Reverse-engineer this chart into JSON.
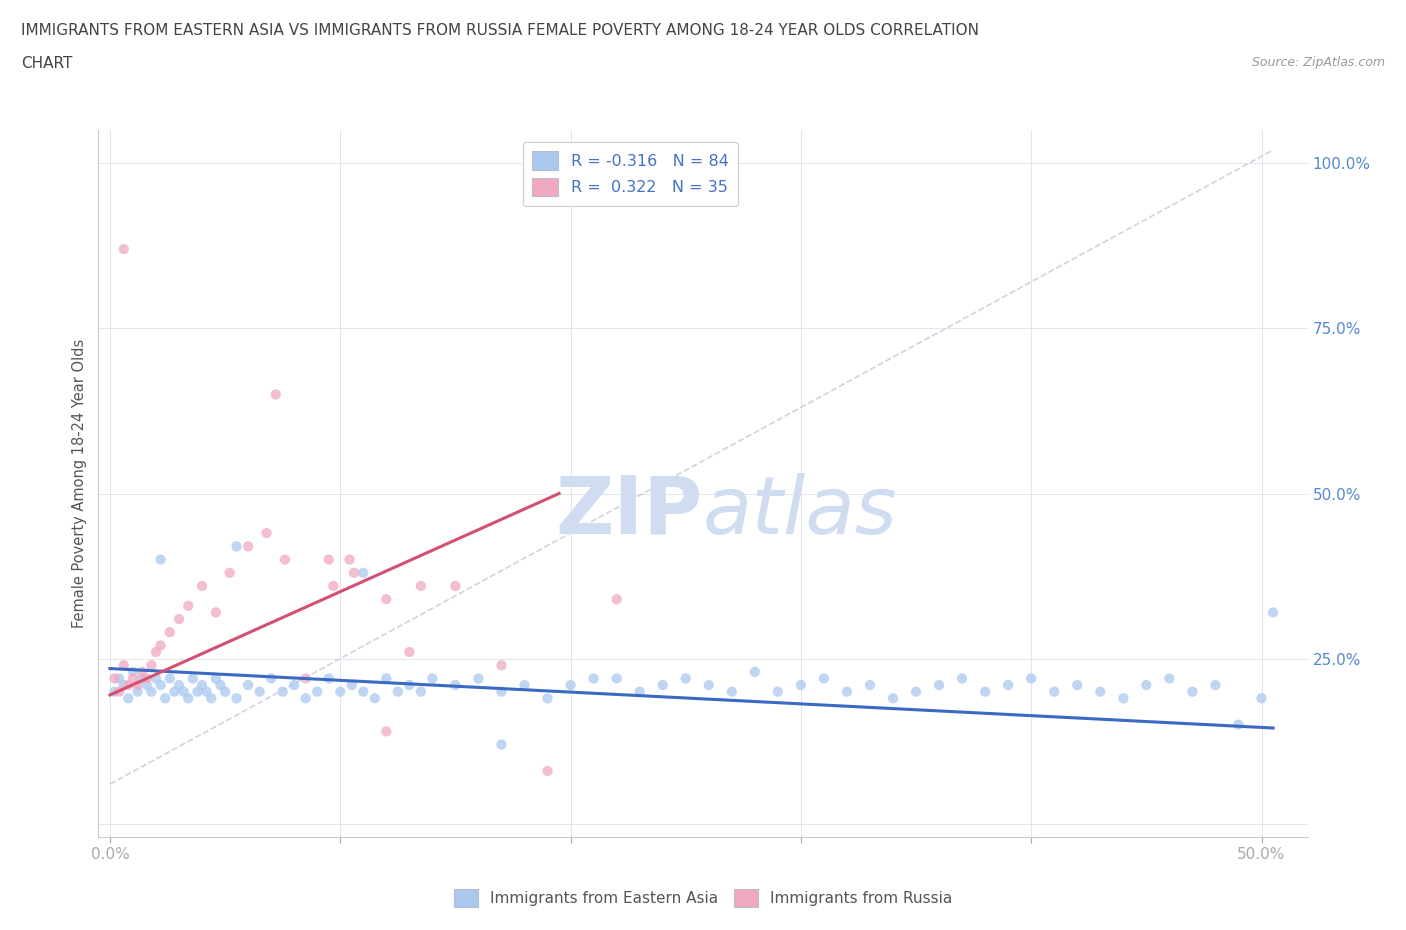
{
  "title_line1": "IMMIGRANTS FROM EASTERN ASIA VS IMMIGRANTS FROM RUSSIA FEMALE POVERTY AMONG 18-24 YEAR OLDS CORRELATION",
  "title_line2": "CHART",
  "source_text": "Source: ZipAtlas.com",
  "ylabel": "Female Poverty Among 18-24 Year Olds",
  "xlim": [
    -0.005,
    0.52
  ],
  "ylim": [
    -0.02,
    1.05
  ],
  "xticks": [
    0.0,
    0.1,
    0.2,
    0.3,
    0.4,
    0.5
  ],
  "xticklabels": [
    "0.0%",
    "",
    "",
    "",
    "",
    "50.0%"
  ],
  "yticks": [
    0.0,
    0.25,
    0.5,
    0.75,
    1.0
  ],
  "yticklabels": [
    "",
    "25.0%",
    "50.0%",
    "75.0%",
    "100.0%"
  ],
  "legend_r1": "R = -0.316   N = 84",
  "legend_r2": "R =  0.322   N = 35",
  "blue_color": "#A8C8F0",
  "pink_color": "#F0A8C0",
  "blue_line_color": "#3B6AC4",
  "pink_line_color": "#D45070",
  "trendline_dash_color": "#C8C8D8",
  "watermark_color": "#D0DCF0",
  "blue_scatter_x": [
    0.002,
    0.004,
    0.006,
    0.008,
    0.01,
    0.012,
    0.014,
    0.016,
    0.018,
    0.02,
    0.022,
    0.024,
    0.026,
    0.028,
    0.03,
    0.032,
    0.034,
    0.036,
    0.038,
    0.04,
    0.042,
    0.044,
    0.046,
    0.048,
    0.05,
    0.055,
    0.06,
    0.065,
    0.07,
    0.075,
    0.08,
    0.085,
    0.09,
    0.095,
    0.1,
    0.105,
    0.11,
    0.115,
    0.12,
    0.125,
    0.13,
    0.135,
    0.14,
    0.15,
    0.16,
    0.17,
    0.18,
    0.19,
    0.2,
    0.21,
    0.22,
    0.23,
    0.24,
    0.25,
    0.26,
    0.27,
    0.28,
    0.29,
    0.3,
    0.31,
    0.32,
    0.33,
    0.34,
    0.35,
    0.36,
    0.37,
    0.38,
    0.39,
    0.4,
    0.41,
    0.42,
    0.43,
    0.44,
    0.45,
    0.46,
    0.47,
    0.48,
    0.49,
    0.5,
    0.505,
    0.022,
    0.055,
    0.11,
    0.17
  ],
  "blue_scatter_y": [
    0.2,
    0.22,
    0.21,
    0.19,
    0.23,
    0.2,
    0.22,
    0.21,
    0.2,
    0.22,
    0.21,
    0.19,
    0.22,
    0.2,
    0.21,
    0.2,
    0.19,
    0.22,
    0.2,
    0.21,
    0.2,
    0.19,
    0.22,
    0.21,
    0.2,
    0.19,
    0.21,
    0.2,
    0.22,
    0.2,
    0.21,
    0.19,
    0.2,
    0.22,
    0.2,
    0.21,
    0.2,
    0.19,
    0.22,
    0.2,
    0.21,
    0.2,
    0.22,
    0.21,
    0.22,
    0.2,
    0.21,
    0.19,
    0.21,
    0.22,
    0.22,
    0.2,
    0.21,
    0.22,
    0.21,
    0.2,
    0.23,
    0.2,
    0.21,
    0.22,
    0.2,
    0.21,
    0.19,
    0.2,
    0.21,
    0.22,
    0.2,
    0.21,
    0.22,
    0.2,
    0.21,
    0.2,
    0.19,
    0.21,
    0.22,
    0.2,
    0.21,
    0.15,
    0.19,
    0.32,
    0.4,
    0.42,
    0.38,
    0.12
  ],
  "pink_scatter_x": [
    0.002,
    0.004,
    0.006,
    0.008,
    0.01,
    0.012,
    0.014,
    0.016,
    0.018,
    0.02,
    0.022,
    0.026,
    0.03,
    0.034,
    0.04,
    0.046,
    0.052,
    0.06,
    0.068,
    0.076,
    0.085,
    0.095,
    0.106,
    0.12,
    0.135,
    0.15,
    0.17,
    0.19,
    0.104,
    0.22,
    0.072,
    0.097,
    0.13,
    0.006,
    0.12
  ],
  "pink_scatter_y": [
    0.22,
    0.2,
    0.24,
    0.21,
    0.22,
    0.21,
    0.23,
    0.22,
    0.24,
    0.26,
    0.27,
    0.29,
    0.31,
    0.33,
    0.36,
    0.32,
    0.38,
    0.42,
    0.44,
    0.4,
    0.22,
    0.4,
    0.38,
    0.34,
    0.36,
    0.36,
    0.24,
    0.08,
    0.4,
    0.34,
    0.65,
    0.36,
    0.26,
    0.87,
    0.14
  ],
  "blue_trendline_x": [
    0.0,
    0.505
  ],
  "blue_trendline_y": [
    0.235,
    0.145
  ],
  "pink_trendline_x": [
    0.0,
    0.195
  ],
  "pink_trendline_y": [
    0.195,
    0.5
  ],
  "ref_trendline_x": [
    0.0,
    0.505
  ],
  "ref_trendline_y": [
    0.06,
    1.02
  ],
  "background_color": "#FFFFFF",
  "grid_color": "#E4E4EE"
}
